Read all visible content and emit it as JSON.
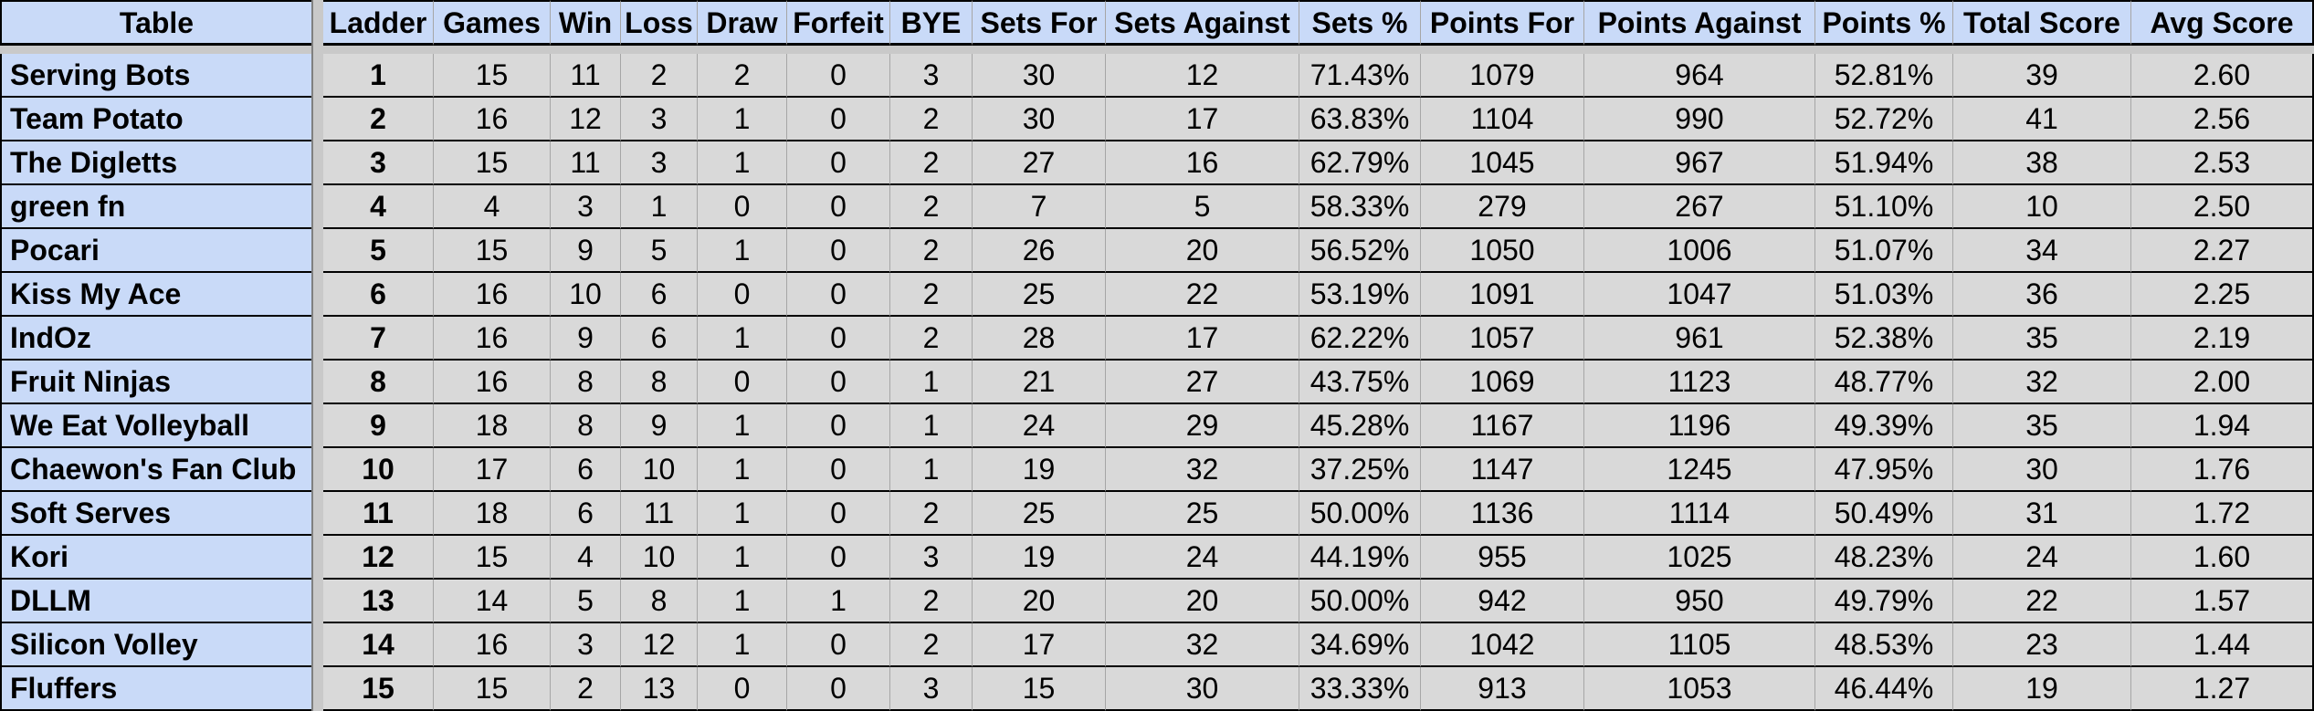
{
  "table": {
    "columns": [
      "Table",
      "Ladder",
      "Games",
      "Win",
      "Loss",
      "Draw",
      "Forfeit",
      "BYE",
      "Sets For",
      "Sets Against",
      "Sets %",
      "Points For",
      "Points Against",
      "Points %",
      "Total Score",
      "Avg Score"
    ],
    "rows": [
      {
        "team": "Serving Bots",
        "values": [
          "1",
          "15",
          "11",
          "2",
          "2",
          "0",
          "3",
          "30",
          "12",
          "71.43%",
          "1079",
          "964",
          "52.81%",
          "39",
          "2.60"
        ]
      },
      {
        "team": "Team Potato",
        "values": [
          "2",
          "16",
          "12",
          "3",
          "1",
          "0",
          "2",
          "30",
          "17",
          "63.83%",
          "1104",
          "990",
          "52.72%",
          "41",
          "2.56"
        ]
      },
      {
        "team": "The Digletts",
        "values": [
          "3",
          "15",
          "11",
          "3",
          "1",
          "0",
          "2",
          "27",
          "16",
          "62.79%",
          "1045",
          "967",
          "51.94%",
          "38",
          "2.53"
        ]
      },
      {
        "team": "green fn",
        "values": [
          "4",
          "4",
          "3",
          "1",
          "0",
          "0",
          "2",
          "7",
          "5",
          "58.33%",
          "279",
          "267",
          "51.10%",
          "10",
          "2.50"
        ]
      },
      {
        "team": "Pocari",
        "values": [
          "5",
          "15",
          "9",
          "5",
          "1",
          "0",
          "2",
          "26",
          "20",
          "56.52%",
          "1050",
          "1006",
          "51.07%",
          "34",
          "2.27"
        ]
      },
      {
        "team": "Kiss My Ace",
        "values": [
          "6",
          "16",
          "10",
          "6",
          "0",
          "0",
          "2",
          "25",
          "22",
          "53.19%",
          "1091",
          "1047",
          "51.03%",
          "36",
          "2.25"
        ]
      },
      {
        "team": "IndOz",
        "values": [
          "7",
          "16",
          "9",
          "6",
          "1",
          "0",
          "2",
          "28",
          "17",
          "62.22%",
          "1057",
          "961",
          "52.38%",
          "35",
          "2.19"
        ]
      },
      {
        "team": "Fruit Ninjas",
        "values": [
          "8",
          "16",
          "8",
          "8",
          "0",
          "0",
          "1",
          "21",
          "27",
          "43.75%",
          "1069",
          "1123",
          "48.77%",
          "32",
          "2.00"
        ]
      },
      {
        "team": "We Eat Volleyball",
        "values": [
          "9",
          "18",
          "8",
          "9",
          "1",
          "0",
          "1",
          "24",
          "29",
          "45.28%",
          "1167",
          "1196",
          "49.39%",
          "35",
          "1.94"
        ]
      },
      {
        "team": "Chaewon's Fan Club",
        "values": [
          "10",
          "17",
          "6",
          "10",
          "1",
          "0",
          "1",
          "19",
          "32",
          "37.25%",
          "1147",
          "1245",
          "47.95%",
          "30",
          "1.76"
        ]
      },
      {
        "team": "Soft Serves",
        "values": [
          "11",
          "18",
          "6",
          "11",
          "1",
          "0",
          "2",
          "25",
          "25",
          "50.00%",
          "1136",
          "1114",
          "50.49%",
          "31",
          "1.72"
        ]
      },
      {
        "team": "Kori",
        "values": [
          "12",
          "15",
          "4",
          "10",
          "1",
          "0",
          "3",
          "19",
          "24",
          "44.19%",
          "955",
          "1025",
          "48.23%",
          "24",
          "1.60"
        ]
      },
      {
        "team": "DLLM",
        "values": [
          "13",
          "14",
          "5",
          "8",
          "1",
          "1",
          "2",
          "20",
          "20",
          "50.00%",
          "942",
          "950",
          "49.79%",
          "22",
          "1.57"
        ]
      },
      {
        "team": "Silicon Volley",
        "values": [
          "14",
          "16",
          "3",
          "12",
          "1",
          "0",
          "2",
          "17",
          "32",
          "34.69%",
          "1042",
          "1105",
          "48.53%",
          "23",
          "1.44"
        ]
      },
      {
        "team": "Fluffers",
        "values": [
          "15",
          "15",
          "2",
          "13",
          "0",
          "0",
          "3",
          "15",
          "30",
          "33.33%",
          "913",
          "1053",
          "46.44%",
          "19",
          "1.27"
        ]
      }
    ]
  },
  "colors": {
    "header_bg": "#c9daf8",
    "row_label_bg": "#c9daf8",
    "cell_bg": "#d9d9d9",
    "gap_bg": "#c9c9c9",
    "border": "#000000",
    "grid_line": "#a6a6a6",
    "divider_line": "#808080",
    "text": "#000000"
  }
}
